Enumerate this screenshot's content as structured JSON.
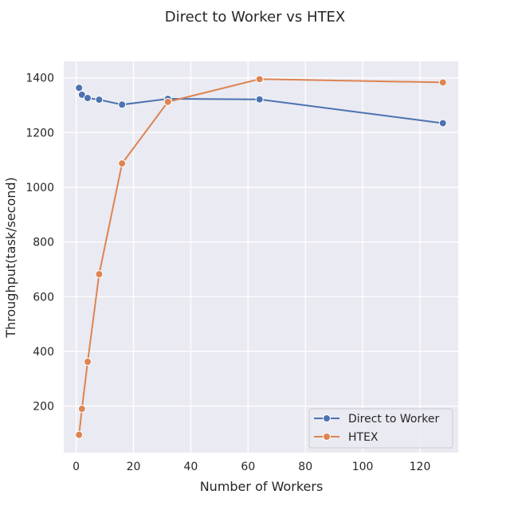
{
  "chart_data": {
    "type": "line",
    "title": "Direct to Worker vs HTEX",
    "xlabel": "Number of Workers",
    "ylabel": "Throughput(task/second)",
    "xlim": [
      -4.35,
      133.35
    ],
    "ylim": [
      30,
      1460
    ],
    "xticks": [
      0,
      20,
      40,
      60,
      80,
      100,
      120
    ],
    "yticks": [
      200,
      400,
      600,
      800,
      1000,
      1200,
      1400
    ],
    "grid": true,
    "legend_position": "bottom-right",
    "series": [
      {
        "name": "Direct to Worker",
        "color": "#4c72b0",
        "x": [
          1,
          2,
          4,
          8,
          16,
          32,
          64,
          128
        ],
        "y": [
          1363,
          1338,
          1326,
          1320,
          1302,
          1323,
          1321,
          1234
        ]
      },
      {
        "name": "HTEX",
        "color": "#dd8452",
        "x": [
          1,
          2,
          4,
          8,
          16,
          32,
          64,
          128
        ],
        "y": [
          95,
          190,
          362,
          682,
          1087,
          1312,
          1395,
          1383
        ]
      }
    ]
  }
}
